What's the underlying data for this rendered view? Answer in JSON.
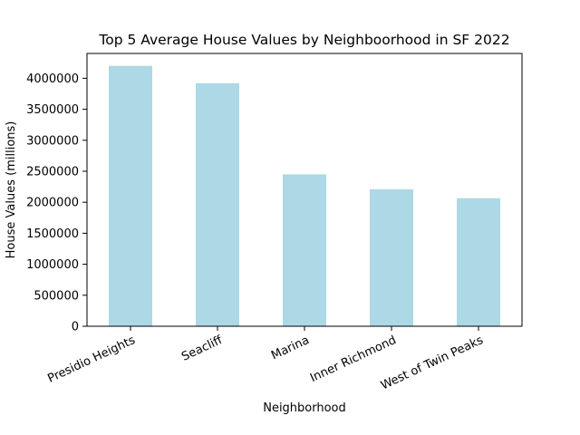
{
  "chart_data": {
    "type": "bar",
    "title": "Top 5 Average House Values by Neighboorhood in SF 2022",
    "xlabel": "Neighborhood",
    "ylabel": "House Values (millions)",
    "categories": [
      "Presidio Heights",
      "Seacliff",
      "Marina",
      "Inner Richmond",
      "West of Twin Peaks"
    ],
    "values": [
      4200000,
      3920000,
      2450000,
      2210000,
      2065000
    ],
    "ylim": [
      0,
      4400000
    ],
    "yticks": [
      0,
      500000,
      1000000,
      1500000,
      2000000,
      2500000,
      3000000,
      3500000,
      4000000
    ],
    "ytick_labels": [
      "0",
      "500000",
      "1000000",
      "1500000",
      "2000000",
      "2500000",
      "3000000",
      "3500000",
      "4000000"
    ],
    "grid": false,
    "legend": "none",
    "bar_color": "#add8e6"
  }
}
